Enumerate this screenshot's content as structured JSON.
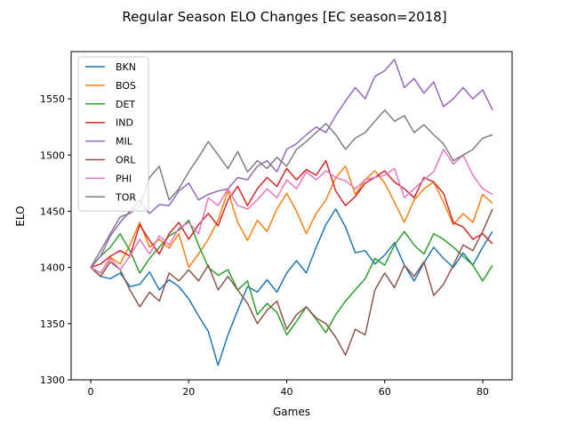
{
  "chart_data": {
    "type": "line",
    "title": "Regular Season ELO Changes [EC season=2018]",
    "xlabel": "Games",
    "ylabel": "ELO",
    "xlim": [
      -4,
      86
    ],
    "ylim": [
      1300,
      1592
    ],
    "xticks": [
      0,
      20,
      40,
      60,
      80
    ],
    "yticks": [
      1300,
      1350,
      1400,
      1450,
      1500,
      1550
    ],
    "grid": false,
    "legend": "top-left",
    "series": [
      {
        "name": "BKN",
        "color": "#1f77b4",
        "x": [
          0,
          2,
          4,
          6,
          8,
          10,
          12,
          14,
          16,
          18,
          20,
          22,
          24,
          26,
          28,
          30,
          32,
          34,
          36,
          38,
          40,
          42,
          44,
          46,
          48,
          50,
          52,
          54,
          56,
          58,
          60,
          62,
          64,
          66,
          68,
          70,
          72,
          74,
          76,
          78,
          80,
          82
        ],
        "values": [
          1400,
          1392,
          1390,
          1395,
          1383,
          1385,
          1396,
          1380,
          1389,
          1383,
          1372,
          1357,
          1343,
          1313,
          1340,
          1362,
          1383,
          1378,
          1389,
          1378,
          1395,
          1406,
          1395,
          1418,
          1438,
          1452,
          1436,
          1413,
          1415,
          1403,
          1411,
          1422,
          1402,
          1388,
          1404,
          1418,
          1408,
          1400,
          1413,
          1402,
          1418,
          1432
        ]
      },
      {
        "name": "BOS",
        "color": "#ff7f0e",
        "x": [
          0,
          2,
          4,
          6,
          8,
          10,
          12,
          14,
          16,
          18,
          20,
          22,
          24,
          26,
          28,
          30,
          32,
          34,
          36,
          38,
          40,
          42,
          44,
          46,
          48,
          50,
          52,
          54,
          56,
          58,
          60,
          62,
          64,
          66,
          68,
          70,
          72,
          74,
          76,
          78,
          80,
          82
        ],
        "values": [
          1400,
          1395,
          1409,
          1403,
          1420,
          1440,
          1418,
          1425,
          1417,
          1430,
          1400,
          1412,
          1425,
          1442,
          1468,
          1440,
          1424,
          1442,
          1432,
          1452,
          1466,
          1450,
          1430,
          1448,
          1460,
          1480,
          1490,
          1465,
          1478,
          1486,
          1475,
          1458,
          1440,
          1460,
          1470,
          1476,
          1458,
          1438,
          1448,
          1440,
          1465,
          1457
        ]
      },
      {
        "name": "DET",
        "color": "#2ca02c",
        "x": [
          0,
          2,
          4,
          6,
          8,
          10,
          12,
          14,
          16,
          18,
          20,
          22,
          24,
          26,
          28,
          30,
          32,
          34,
          36,
          38,
          40,
          42,
          44,
          46,
          48,
          50,
          52,
          54,
          56,
          58,
          60,
          62,
          64,
          66,
          68,
          70,
          72,
          74,
          76,
          78,
          80,
          82
        ],
        "values": [
          1400,
          1410,
          1418,
          1430,
          1415,
          1395,
          1408,
          1418,
          1428,
          1433,
          1442,
          1420,
          1400,
          1393,
          1398,
          1380,
          1388,
          1358,
          1368,
          1360,
          1340,
          1352,
          1365,
          1354,
          1342,
          1358,
          1370,
          1380,
          1390,
          1408,
          1402,
          1420,
          1432,
          1420,
          1412,
          1430,
          1425,
          1418,
          1410,
          1402,
          1388,
          1402
        ]
      },
      {
        "name": "IND",
        "color": "#d62728",
        "x": [
          0,
          2,
          4,
          6,
          8,
          10,
          12,
          14,
          16,
          18,
          20,
          22,
          24,
          26,
          28,
          30,
          32,
          34,
          36,
          38,
          40,
          42,
          44,
          46,
          48,
          50,
          52,
          54,
          56,
          58,
          60,
          62,
          64,
          66,
          68,
          70,
          72,
          74,
          76,
          78,
          80,
          82
        ],
        "values": [
          1400,
          1403,
          1410,
          1415,
          1410,
          1438,
          1424,
          1412,
          1430,
          1440,
          1425,
          1438,
          1448,
          1437,
          1460,
          1472,
          1455,
          1470,
          1480,
          1472,
          1488,
          1478,
          1487,
          1482,
          1495,
          1468,
          1455,
          1463,
          1475,
          1480,
          1486,
          1476,
          1470,
          1462,
          1480,
          1476,
          1466,
          1440,
          1436,
          1425,
          1430,
          1421
        ]
      },
      {
        "name": "MIL",
        "color": "#9467bd",
        "x": [
          0,
          2,
          4,
          6,
          8,
          10,
          12,
          14,
          16,
          18,
          20,
          22,
          24,
          26,
          28,
          30,
          32,
          34,
          36,
          38,
          40,
          42,
          44,
          46,
          48,
          50,
          52,
          54,
          56,
          58,
          60,
          62,
          64,
          66,
          68,
          70,
          72,
          74,
          76,
          78,
          80,
          82
        ],
        "values": [
          1400,
          1410,
          1428,
          1440,
          1450,
          1460,
          1448,
          1456,
          1455,
          1468,
          1475,
          1460,
          1465,
          1468,
          1470,
          1480,
          1478,
          1490,
          1495,
          1485,
          1505,
          1510,
          1518,
          1525,
          1520,
          1535,
          1548,
          1560,
          1550,
          1570,
          1575,
          1585,
          1560,
          1568,
          1555,
          1565,
          1543,
          1550,
          1560,
          1550,
          1558,
          1540
        ]
      },
      {
        "name": "ORL",
        "color": "#8c564b",
        "x": [
          0,
          2,
          4,
          6,
          8,
          10,
          12,
          14,
          16,
          18,
          20,
          22,
          24,
          26,
          28,
          30,
          32,
          34,
          36,
          38,
          40,
          42,
          44,
          46,
          48,
          50,
          52,
          54,
          56,
          58,
          60,
          62,
          64,
          66,
          68,
          70,
          72,
          74,
          76,
          78,
          80,
          82
        ],
        "values": [
          1400,
          1392,
          1405,
          1398,
          1380,
          1365,
          1378,
          1370,
          1395,
          1388,
          1398,
          1388,
          1402,
          1380,
          1392,
          1380,
          1368,
          1350,
          1362,
          1370,
          1345,
          1358,
          1365,
          1355,
          1350,
          1338,
          1322,
          1345,
          1340,
          1380,
          1395,
          1382,
          1402,
          1392,
          1405,
          1375,
          1385,
          1402,
          1420,
          1415,
          1432,
          1452
        ]
      },
      {
        "name": "PHI",
        "color": "#e377c2",
        "x": [
          0,
          2,
          4,
          6,
          8,
          10,
          12,
          14,
          16,
          18,
          20,
          22,
          24,
          26,
          28,
          30,
          32,
          34,
          36,
          38,
          40,
          42,
          44,
          46,
          48,
          50,
          52,
          54,
          56,
          58,
          60,
          62,
          64,
          66,
          68,
          70,
          72,
          74,
          76,
          78,
          80,
          82
        ],
        "values": [
          1400,
          1395,
          1408,
          1398,
          1410,
          1425,
          1412,
          1428,
          1420,
          1435,
          1440,
          1430,
          1462,
          1455,
          1470,
          1455,
          1452,
          1460,
          1470,
          1462,
          1478,
          1470,
          1485,
          1478,
          1486,
          1480,
          1477,
          1470,
          1478,
          1480,
          1482,
          1488,
          1462,
          1470,
          1478,
          1485,
          1505,
          1492,
          1500,
          1482,
          1470,
          1465
        ]
      },
      {
        "name": "TOR",
        "color": "#7f7f7f",
        "x": [
          0,
          2,
          4,
          6,
          8,
          10,
          12,
          14,
          16,
          18,
          20,
          22,
          24,
          26,
          28,
          30,
          32,
          34,
          36,
          38,
          40,
          42,
          44,
          46,
          48,
          50,
          52,
          54,
          56,
          58,
          60,
          62,
          64,
          66,
          68,
          70,
          72,
          74,
          76,
          78,
          80,
          82
        ],
        "values": [
          1400,
          1415,
          1430,
          1445,
          1448,
          1455,
          1480,
          1490,
          1460,
          1470,
          1485,
          1498,
          1512,
          1500,
          1488,
          1503,
          1485,
          1495,
          1488,
          1498,
          1490,
          1505,
          1512,
          1520,
          1528,
          1518,
          1505,
          1515,
          1520,
          1530,
          1540,
          1530,
          1535,
          1520,
          1527,
          1518,
          1510,
          1495,
          1500,
          1505,
          1515,
          1518
        ]
      }
    ]
  }
}
